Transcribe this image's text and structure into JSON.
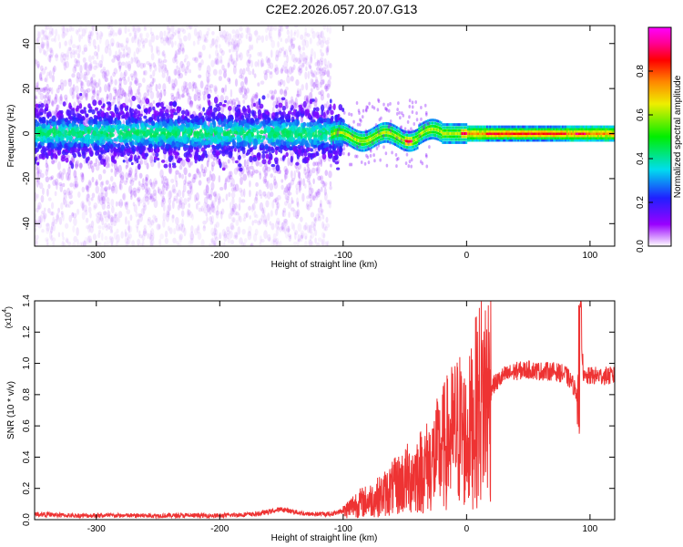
{
  "title": "C2E2.2026.057.20.07.G13",
  "chart_data": [
    {
      "type": "heatmap",
      "title": "C2E2.2026.057.20.07.G13",
      "xlabel": "Height of straight line (km)",
      "ylabel": "Frequency (Hz)",
      "xlim": [
        -350,
        120
      ],
      "ylim": [
        -50,
        48
      ],
      "xticks": [
        -300,
        -200,
        -100,
        0,
        100
      ],
      "xtick_labels": [
        "-300",
        "-200",
        "-100",
        "0",
        "100"
      ],
      "yticks": [
        -40,
        -20,
        0,
        20,
        40
      ],
      "ytick_labels": [
        "-40",
        "-20",
        "0",
        "20",
        "40"
      ],
      "noise_region_x": [
        -350,
        -110
      ],
      "signal_band_hz": [
        -3,
        3
      ],
      "colorbar": {
        "label": "Normalized spectral amplitude",
        "range": [
          0,
          1
        ],
        "ticks": [
          0.0,
          0.2,
          0.4,
          0.6,
          0.8
        ],
        "tick_labels": [
          "0.0",
          "0.2",
          "0.4",
          "0.6",
          "0.8"
        ],
        "colors": [
          "#ffffff",
          "#9900ff",
          "#2020ff",
          "#00ddee",
          "#00ee00",
          "#eeee00",
          "#ff8800",
          "#ff0000",
          "#ff0099",
          "#ff00ff"
        ]
      }
    },
    {
      "type": "line",
      "xlabel": "Height of straight line (km)",
      "ylabel": "SNR (10 * v/v)",
      "scale_label": "(x10",
      "scale_exp": "4",
      "scale_close": ")",
      "xlim": [
        -350,
        120
      ],
      "ylim": [
        0,
        1.4
      ],
      "xticks": [
        -300,
        -200,
        -100,
        0,
        100
      ],
      "xtick_labels": [
        "-300",
        "-200",
        "-100",
        "0",
        "100"
      ],
      "yticks": [
        0.0,
        0.2,
        0.4,
        0.6,
        0.8,
        1.0,
        1.2,
        1.4
      ],
      "ytick_labels": [
        "0.0",
        "0.2",
        "0.4",
        "0.6",
        "0.8",
        "1.0",
        "1.2",
        "1.4"
      ],
      "line_color": "#ee3333",
      "series": [
        {
          "name": "SNR",
          "x": [
            -350,
            -320,
            -300,
            -250,
            -200,
            -170,
            -150,
            -130,
            -110,
            -100,
            -90,
            -80,
            -70,
            -60,
            -50,
            -40,
            -30,
            -20,
            -10,
            -5,
            0,
            10,
            20,
            30,
            40,
            50,
            60,
            70,
            80,
            85,
            90,
            92,
            95,
            100,
            110,
            120
          ],
          "values": [
            0.03,
            0.02,
            0.02,
            0.02,
            0.02,
            0.03,
            0.06,
            0.03,
            0.03,
            0.05,
            0.1,
            0.12,
            0.15,
            0.2,
            0.25,
            0.3,
            0.35,
            0.45,
            0.55,
            0.58,
            0.5,
            0.75,
            0.85,
            0.92,
            0.95,
            0.96,
            0.95,
            0.95,
            0.93,
            0.88,
            0.8,
            1.28,
            0.9,
            0.92,
            0.92,
            0.92
          ]
        }
      ]
    }
  ]
}
